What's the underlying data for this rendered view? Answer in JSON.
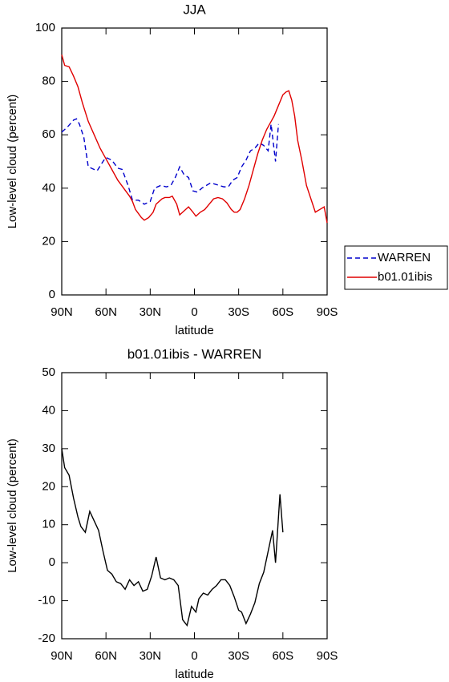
{
  "chart_data": [
    {
      "type": "line",
      "title": "JJA",
      "xlabel": "latitude",
      "ylabel": "Low-level cloud (percent)",
      "xlim": [
        90,
        -90
      ],
      "xticks": [
        {
          "value": 90,
          "label": "90N"
        },
        {
          "value": 60,
          "label": "60N"
        },
        {
          "value": 30,
          "label": "30N"
        },
        0,
        {
          "value": -30,
          "label": "30S"
        },
        {
          "value": -60,
          "label": "60S"
        },
        {
          "value": -90,
          "label": "90S"
        }
      ],
      "ylim": [
        0,
        100
      ],
      "yticks": [
        0,
        20,
        40,
        60,
        80,
        100
      ],
      "legend": "right",
      "series": [
        {
          "name": "WARREN",
          "color": "#0000cc",
          "linestyle": "dashed",
          "x": [
            90,
            86,
            82,
            80,
            78,
            75,
            72,
            68,
            66,
            62,
            60,
            56,
            52,
            49,
            47,
            45,
            42,
            38,
            34,
            30,
            27,
            23,
            19,
            16,
            13,
            10,
            7,
            4,
            1,
            -2,
            -5,
            -8,
            -11,
            -14,
            -17,
            -20,
            -23,
            -26,
            -29,
            -32,
            -35,
            -38,
            -41,
            -44,
            -47,
            -50,
            -52,
            -55,
            -57
          ],
          "values": [
            61,
            63,
            65.5,
            66,
            64,
            59,
            48,
            47,
            46.5,
            50,
            51.5,
            50.5,
            47.5,
            47,
            44,
            41,
            35.5,
            35.5,
            34,
            35,
            40,
            41,
            40.5,
            41,
            44,
            48,
            45,
            44,
            39,
            38.5,
            40,
            41,
            42,
            41.5,
            41,
            40.5,
            40.5,
            43,
            44,
            48,
            50.5,
            54,
            55,
            57,
            56,
            54,
            64,
            50,
            64
          ]
        },
        {
          "name": "b01.01ibis",
          "color": "#e00000",
          "linestyle": "solid",
          "x": [
            90,
            88,
            85,
            82,
            79,
            76,
            72,
            68,
            64,
            60,
            56,
            52,
            48,
            44,
            42,
            40,
            36,
            34,
            31,
            28,
            26,
            22,
            20,
            17,
            15,
            12,
            10,
            7,
            4,
            1,
            -1,
            -4,
            -7,
            -10,
            -13,
            -16,
            -19,
            -22,
            -25,
            -27,
            -29,
            -31,
            -34,
            -37,
            -40,
            -43,
            -46,
            -49,
            -52,
            -54,
            -57,
            -60,
            -62,
            -64,
            -66,
            -68,
            -70,
            -73,
            -76,
            -79,
            -82,
            -85,
            -88,
            -90
          ],
          "values": [
            90,
            86,
            85.5,
            82,
            78,
            72,
            65,
            60,
            55,
            51,
            47,
            43,
            40,
            37,
            35,
            32,
            29,
            28,
            29,
            31,
            34,
            36,
            36.5,
            36.5,
            37,
            34,
            30,
            31.5,
            33,
            31,
            29.5,
            31,
            32,
            34,
            36,
            36.5,
            36,
            34.5,
            32,
            31,
            31,
            32,
            36,
            41,
            47,
            53,
            58,
            62,
            65,
            67,
            71,
            75,
            76,
            76.5,
            73,
            67,
            58,
            50,
            41,
            36,
            31,
            32,
            33,
            27
          ]
        }
      ]
    },
    {
      "type": "line",
      "title": "b01.01ibis - WARREN",
      "xlabel": "latitude",
      "ylabel": "Low-level cloud (percent)",
      "xlim": [
        90,
        -90
      ],
      "xticks": [
        {
          "value": 90,
          "label": "90N"
        },
        {
          "value": 60,
          "label": "60N"
        },
        {
          "value": 30,
          "label": "30N"
        },
        0,
        {
          "value": -30,
          "label": "30S"
        },
        {
          "value": -60,
          "label": "60S"
        },
        {
          "value": -90,
          "label": "90S"
        }
      ],
      "ylim": [
        -20,
        50
      ],
      "yticks": [
        -20,
        -10,
        0,
        10,
        20,
        30,
        40,
        50
      ],
      "series": [
        {
          "color": "#000000",
          "linestyle": "solid",
          "x": [
            90,
            88,
            85,
            82,
            79,
            77,
            74,
            71,
            68,
            65,
            62,
            59,
            56,
            53,
            50,
            47,
            44,
            41,
            38,
            35,
            32,
            29,
            26,
            23,
            20,
            17,
            14,
            11,
            8,
            5,
            2,
            -1,
            -3,
            -6,
            -9,
            -12,
            -15,
            -18,
            -21,
            -24,
            -27,
            -30,
            -32,
            -35,
            -38,
            -41,
            -44,
            -47,
            -50,
            -53,
            -55,
            -58,
            -60
          ],
          "values": [
            30,
            25,
            23,
            17,
            12,
            9.5,
            8,
            13.5,
            11,
            8.5,
            3,
            -2,
            -3,
            -5,
            -5.5,
            -7,
            -4.5,
            -6,
            -5,
            -7.5,
            -7,
            -3.5,
            1.5,
            -4,
            -4.5,
            -4,
            -4.5,
            -6,
            -15,
            -16.5,
            -11.5,
            -13,
            -9.5,
            -8,
            -8.5,
            -7,
            -6,
            -4.5,
            -4.5,
            -6,
            -9,
            -12.5,
            -13,
            -16,
            -13.5,
            -10.5,
            -5.5,
            -2.5,
            3,
            8.5,
            0,
            18,
            8
          ]
        }
      ]
    }
  ]
}
